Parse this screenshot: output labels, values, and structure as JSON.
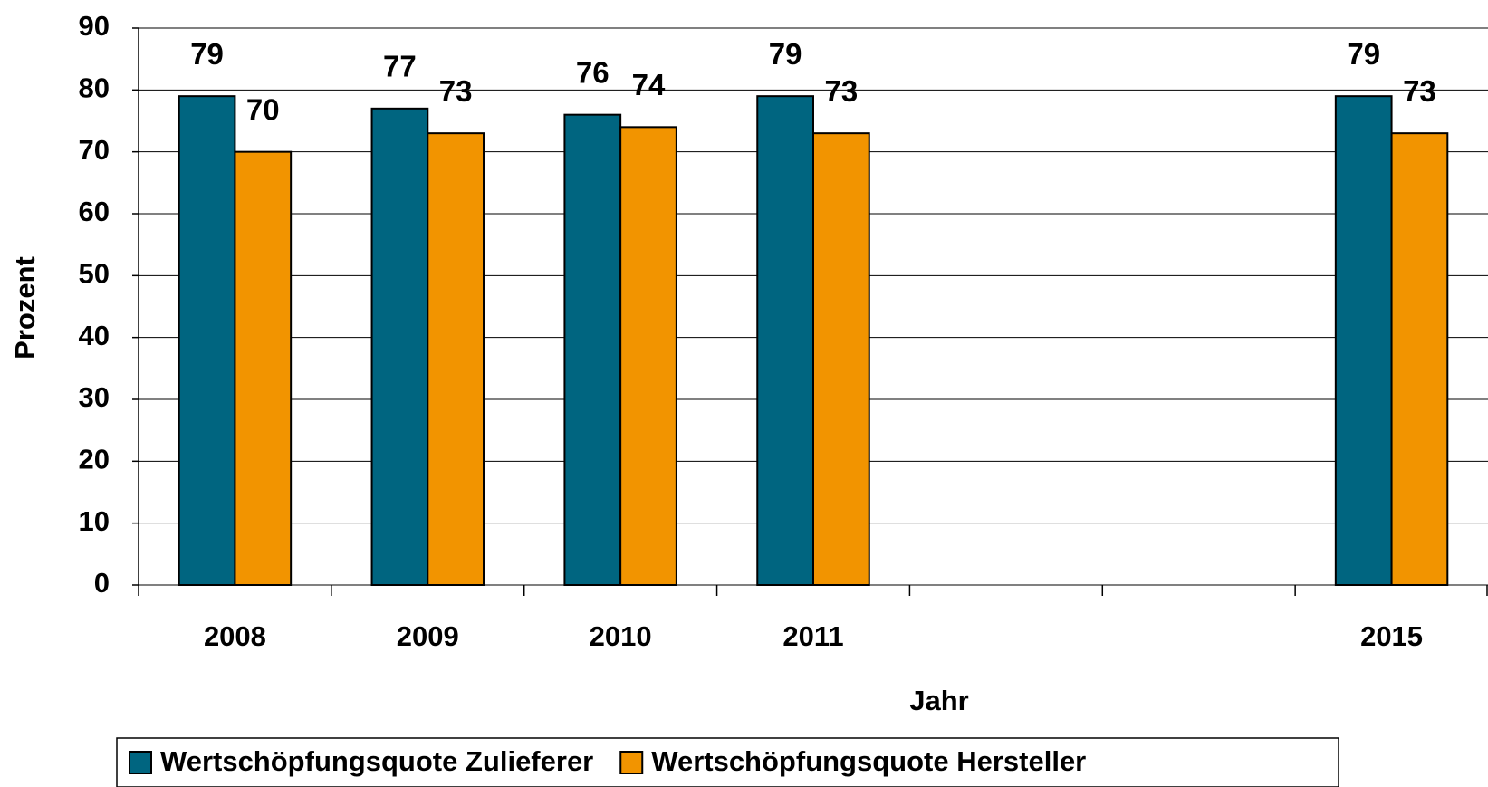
{
  "chart_data": {
    "type": "bar",
    "x_label": "Jahr",
    "y_label": "Prozent",
    "categories": [
      "2008",
      "2009",
      "2010",
      "2011",
      null,
      null,
      "2015"
    ],
    "series": [
      {
        "name": "Wertschöpfungsquote Zulieferer",
        "color": "#006580",
        "values": [
          79,
          77,
          76,
          79,
          null,
          null,
          79
        ]
      },
      {
        "name": "Wertschöpfungsquote Hersteller",
        "color": "#f29400",
        "values": [
          70,
          73,
          74,
          73,
          null,
          null,
          73
        ]
      }
    ],
    "ylim": [
      0,
      90
    ],
    "yticks": [
      0,
      10,
      20,
      30,
      40,
      50,
      60,
      70,
      80,
      90
    ],
    "grid": true,
    "legend": "bottom"
  }
}
